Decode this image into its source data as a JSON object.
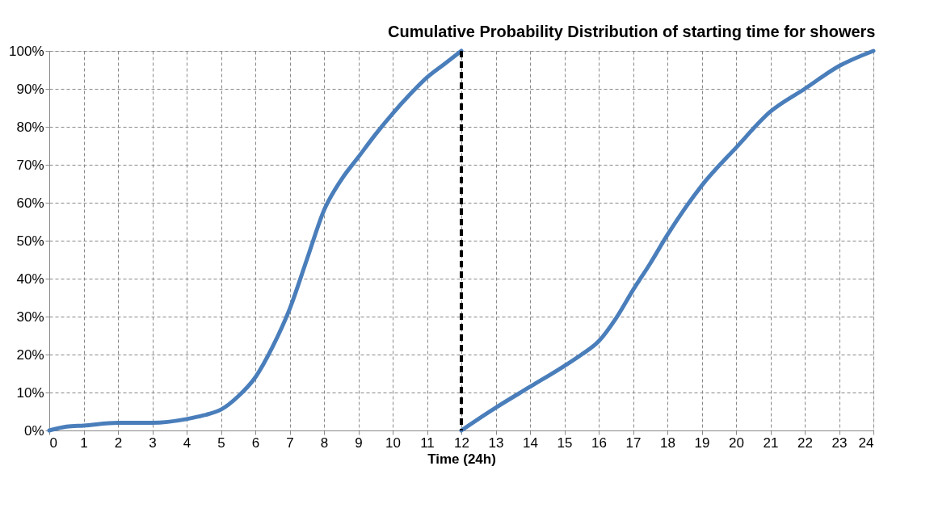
{
  "chart_data": {
    "type": "line",
    "title": "Cumulative Probability  Distribution of starting time for showers",
    "xlabel": "Time (24h)",
    "series": [
      {
        "color": "#4a7ebb",
        "x": [
          0,
          0.5,
          1,
          2,
          3,
          4,
          4.5,
          5,
          5.5,
          6,
          6.5,
          7,
          7.5,
          8,
          8.5,
          9,
          9.5,
          10,
          10.5,
          11,
          11.5,
          12
        ],
        "values": [
          0,
          1,
          1.3,
          2,
          2,
          3,
          4,
          5.5,
          9,
          14,
          22,
          32,
          45,
          58,
          66,
          72,
          78,
          83.5,
          88.5,
          93,
          96.5,
          100
        ]
      },
      {
        "color": "#4a7ebb",
        "x": [
          12,
          13,
          14,
          15,
          15.5,
          16,
          16.5,
          17,
          17.5,
          18,
          19,
          20,
          21,
          22,
          23,
          24
        ],
        "values": [
          0,
          6,
          11.5,
          17,
          20,
          23.5,
          29.5,
          37,
          44,
          51.5,
          64.5,
          74.5,
          84,
          90,
          96,
          100
        ]
      }
    ],
    "xlim": [
      0,
      24
    ],
    "xticks": [
      0,
      1,
      2,
      3,
      4,
      5,
      6,
      7,
      8,
      9,
      10,
      11,
      12,
      13,
      14,
      15,
      16,
      17,
      18,
      19,
      20,
      21,
      22,
      23,
      24
    ],
    "ylim": [
      0,
      100
    ],
    "yticks": [
      {
        "value": 0,
        "label": "0%"
      },
      {
        "value": 10,
        "label": "10%"
      },
      {
        "value": 20,
        "label": "20%"
      },
      {
        "value": 30,
        "label": "30%"
      },
      {
        "value": 40,
        "label": "40%"
      },
      {
        "value": 50,
        "label": "50%"
      },
      {
        "value": 60,
        "label": "60%"
      },
      {
        "value": 70,
        "label": "70%"
      },
      {
        "value": 80,
        "label": "80%"
      },
      {
        "value": 90,
        "label": "90%"
      },
      {
        "value": 100,
        "label": "100%"
      }
    ],
    "ref_lines": [
      {
        "axis": "x",
        "value": 12,
        "color": "#000000",
        "line_style": "dashed"
      }
    ],
    "grid": true,
    "marker": "none",
    "line_style": "solid"
  }
}
